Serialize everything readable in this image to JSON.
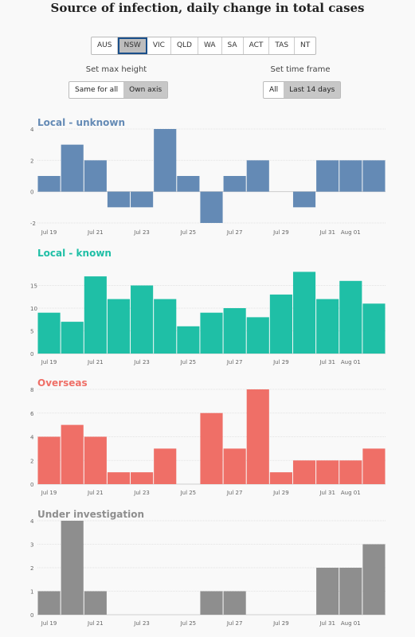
{
  "title": "Source of infection, daily change in total cases",
  "states": [
    "AUS",
    "NSW",
    "VIC",
    "QLD",
    "WA",
    "SA",
    "ACT",
    "TAS",
    "NT"
  ],
  "selected_state": "NSW",
  "max_height": {
    "label": "Set max height",
    "options": [
      "Same for all",
      "Own axis"
    ],
    "selected": "Own axis"
  },
  "time_frame": {
    "label": "Set time frame",
    "options": [
      "All",
      "Last 14 days"
    ],
    "selected": "Last 14 days"
  },
  "chart_data": [
    {
      "type": "bar",
      "title": "Local - unknown",
      "color": "#648ab5",
      "ylim": [
        -2,
        4
      ],
      "yticks": [
        -2,
        0,
        2,
        4
      ],
      "values": [
        1,
        3,
        2,
        -1,
        -1,
        4,
        1,
        -2,
        1,
        2,
        0,
        -1,
        2,
        2,
        2
      ],
      "xticks": [
        "Jul 19",
        "Jul 21",
        "Jul 23",
        "Jul 25",
        "Jul 27",
        "Jul 29",
        "Jul 31",
        "Aug 01"
      ]
    },
    {
      "type": "bar",
      "title": "Local - known",
      "color": "#1fbfa6",
      "ylim": [
        0,
        20
      ],
      "yticks": [
        0,
        5,
        10,
        15
      ],
      "values": [
        9,
        7,
        17,
        12,
        15,
        12,
        6,
        9,
        10,
        8,
        13,
        18,
        12,
        16,
        11
      ],
      "xticks": [
        "Jul 19",
        "Jul 21",
        "Jul 23",
        "Jul 25",
        "Jul 27",
        "Jul 29",
        "Jul 31",
        "Aug 01"
      ]
    },
    {
      "type": "bar",
      "title": "Overseas",
      "color": "#ef6f67",
      "ylim": [
        0,
        8
      ],
      "yticks": [
        0,
        2,
        4,
        6,
        8
      ],
      "values": [
        4,
        5,
        4,
        1,
        1,
        3,
        0,
        6,
        3,
        8,
        1,
        2,
        2,
        2,
        3
      ],
      "xticks": [
        "Jul 19",
        "Jul 21",
        "Jul 23",
        "Jul 25",
        "Jul 27",
        "Jul 29",
        "Jul 31",
        "Aug 01"
      ]
    },
    {
      "type": "bar",
      "title": "Under investigation",
      "color": "#8e8e8e",
      "ylim": [
        0,
        4
      ],
      "yticks": [
        0,
        1,
        2,
        3,
        4
      ],
      "values": [
        1,
        4,
        1,
        0,
        0,
        0,
        0,
        1,
        1,
        0,
        0,
        0,
        2,
        2,
        3
      ],
      "xticks": [
        "Jul 19",
        "Jul 21",
        "Jul 23",
        "Jul 25",
        "Jul 27",
        "Jul 29",
        "Jul 31",
        "Aug 01"
      ]
    }
  ]
}
